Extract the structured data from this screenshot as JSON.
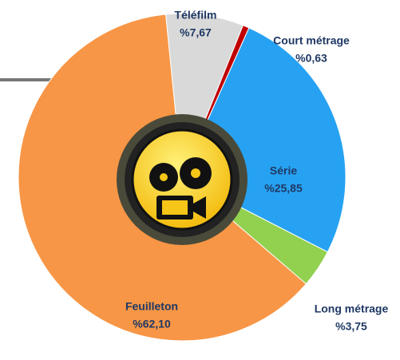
{
  "chart_data": {
    "type": "donut",
    "categories": [
      "Téléfilm",
      "Court métrage",
      "Série",
      "Long métrage",
      "Feuilleton"
    ],
    "values": [
      7.67,
      0.63,
      25.85,
      3.75,
      62.1
    ],
    "value_labels": [
      "%7,67",
      "%0,63",
      "%25,85",
      "%3,75",
      "%62,10"
    ],
    "colors": [
      "#d9d9d9",
      "#c00000",
      "#27a2f2",
      "#92d050",
      "#f79646"
    ]
  }
}
